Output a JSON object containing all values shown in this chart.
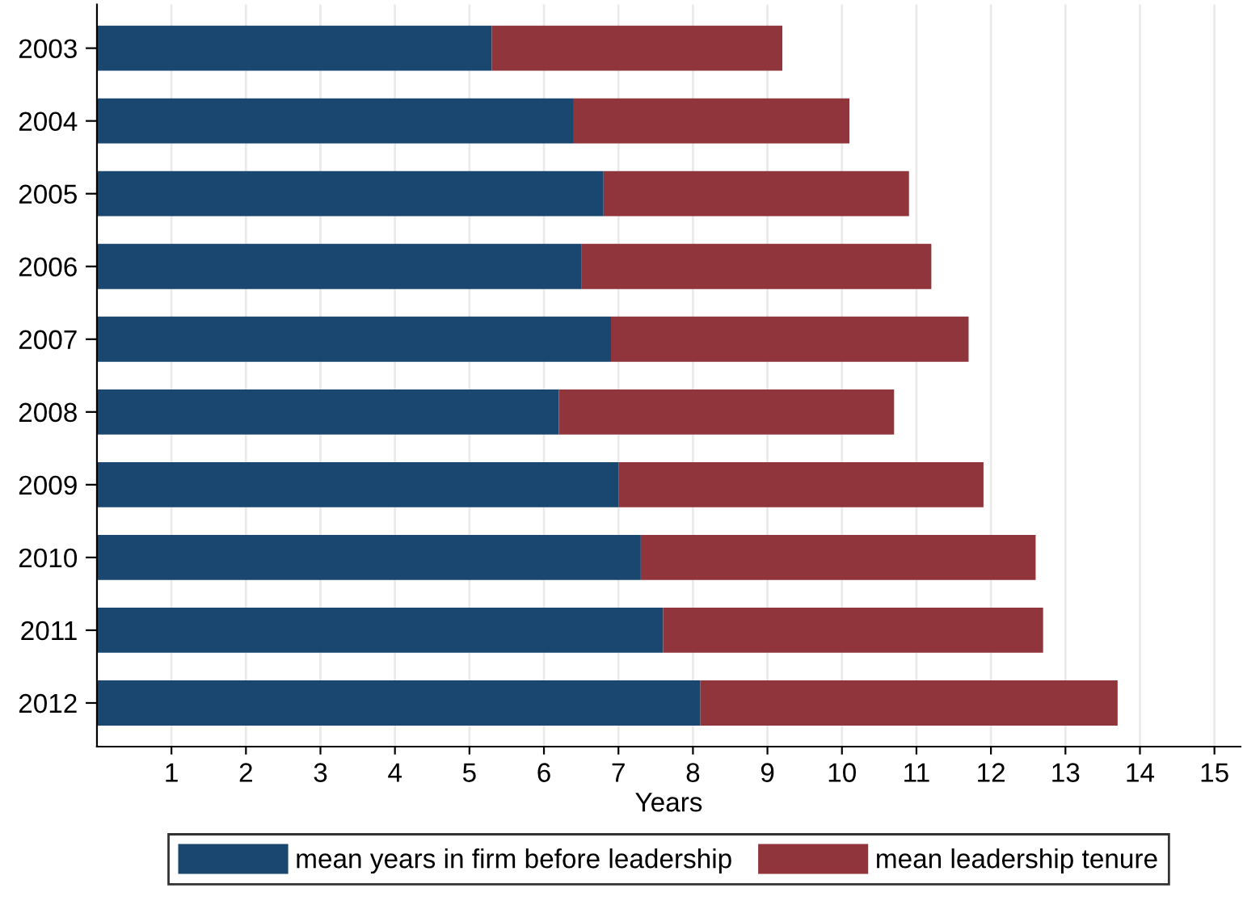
{
  "chart_data": {
    "type": "bar",
    "orientation": "horizontal",
    "stacked": true,
    "categories": [
      "2003",
      "2004",
      "2005",
      "2006",
      "2007",
      "2008",
      "2009",
      "2010",
      "2011",
      "2012"
    ],
    "series": [
      {
        "name": "mean years in firm before leadership",
        "color": "#1a476f",
        "values": [
          5.3,
          6.4,
          6.8,
          6.5,
          6.9,
          6.2,
          7.0,
          7.3,
          7.6,
          8.1
        ]
      },
      {
        "name": "mean leadership tenure",
        "color": "#90353b",
        "values": [
          3.9,
          3.7,
          4.1,
          4.7,
          4.8,
          4.5,
          4.9,
          5.3,
          5.1,
          5.6
        ]
      }
    ],
    "xlabel": "Years",
    "xlim": [
      0,
      15.35
    ],
    "xticks": [
      1,
      2,
      3,
      4,
      5,
      6,
      7,
      8,
      9,
      10,
      11,
      12,
      13,
      14,
      15
    ],
    "grid": "x",
    "legend": "bottom"
  }
}
